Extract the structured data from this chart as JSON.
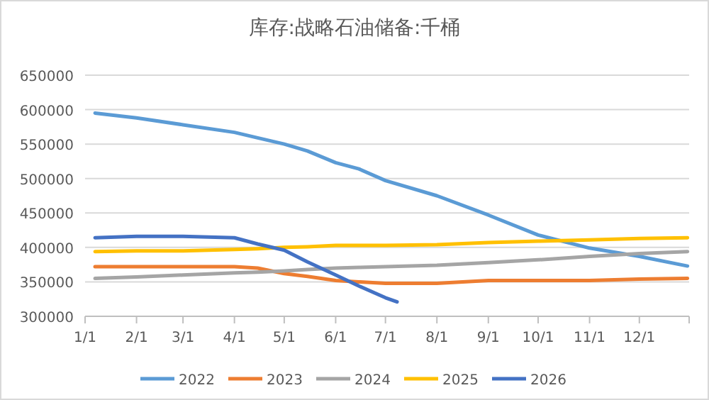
{
  "chart_data": {
    "type": "line",
    "title": "库存:战略石油储备:千桶",
    "x": [
      "--01-07",
      "--02-01",
      "--03-01",
      "--04-01",
      "--04-15",
      "--05-01",
      "--05-15",
      "--06-01",
      "--06-15",
      "--07-01",
      "--08-01",
      "--09-01",
      "--10-01",
      "--11-01",
      "--12-01",
      "--12-30"
    ],
    "series": [
      {
        "name": "2022",
        "color": "#5b9bd5",
        "values": [
          595000,
          588000,
          578000,
          567000,
          559000,
          550000,
          540000,
          523000,
          514000,
          497000,
          475000,
          447000,
          418000,
          399000,
          387000,
          373000
        ]
      },
      {
        "name": "2023",
        "color": "#ed7d31",
        "values": [
          372000,
          372000,
          372000,
          372000,
          370000,
          362000,
          358000,
          352000,
          350000,
          348000,
          348000,
          352000,
          352000,
          352000,
          354000,
          355000
        ]
      },
      {
        "name": "2024",
        "color": "#a5a5a5",
        "values": [
          355000,
          357000,
          360000,
          363000,
          364000,
          366000,
          368000,
          370000,
          371000,
          372000,
          374000,
          378000,
          382000,
          387000,
          391000,
          394000
        ]
      },
      {
        "name": "2025",
        "color": "#ffc000",
        "values": [
          394000,
          395000,
          395000,
          397000,
          398000,
          400000,
          401000,
          403000,
          403000,
          403000,
          404000,
          407000,
          409000,
          411000,
          413000,
          414000
        ]
      },
      {
        "name": "2026",
        "color": "#4472c4",
        "x": [
          "--01-07",
          "--02-01",
          "--03-01",
          "--04-01",
          "--04-15",
          "--05-01",
          "--05-15",
          "--06-01",
          "--06-15",
          "--07-01",
          "--07-08"
        ],
        "values": [
          414000,
          416000,
          416000,
          414000,
          405000,
          396000,
          379000,
          360000,
          344000,
          327000,
          321000
        ]
      }
    ],
    "xlim": [
      "--01-01",
      "--12-31"
    ],
    "xticks": [
      {
        "value": "--01-01",
        "label": "1/1"
      },
      {
        "value": "--02-01",
        "label": "2/1"
      },
      {
        "value": "--03-01",
        "label": "3/1"
      },
      {
        "value": "--04-01",
        "label": "4/1"
      },
      {
        "value": "--05-01",
        "label": "5/1"
      },
      {
        "value": "--06-01",
        "label": "6/1"
      },
      {
        "value": "--07-01",
        "label": "7/1"
      },
      {
        "value": "--08-01",
        "label": "8/1"
      },
      {
        "value": "--09-01",
        "label": "9/1"
      },
      {
        "value": "--10-01",
        "label": "10/1"
      },
      {
        "value": "--11-01",
        "label": "11/1"
      },
      {
        "value": "--12-01",
        "label": "12/1"
      }
    ],
    "ylim": [
      300000,
      650000
    ],
    "yticks": [
      300000,
      350000,
      400000,
      450000,
      500000,
      550000,
      600000,
      650000
    ],
    "grid": "y",
    "legend": "bottom",
    "marker": "none",
    "line_style": "solid"
  }
}
